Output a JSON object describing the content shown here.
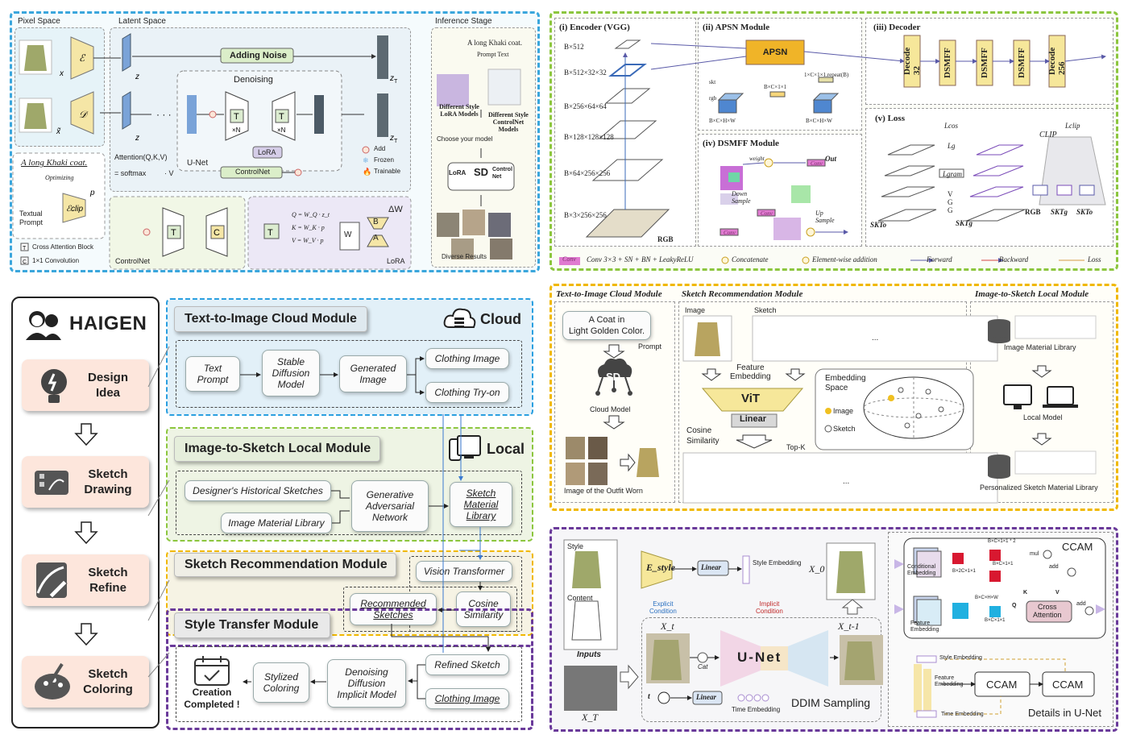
{
  "panelA": {
    "pixel": "Pixel Space",
    "latent": "Latent Space",
    "inference": "Inference Stage",
    "noise": "Adding Noise",
    "denoise": "Denoising",
    "unet": "U-Net",
    "attn": "Attention(Q,K,V)",
    "attn2": "= softmax",
    "attn3": "· V",
    "lora": "LoRA",
    "controlnet": "ControlNet",
    "caption": "A long Khaki coat.",
    "optimizing": "Optimizing",
    "textual": "Textual\nPrompt",
    "crossattn": "Cross Attention Block",
    "conv11": "1×1 Convolution",
    "add": "Add",
    "frozen": "Frozen",
    "trainable": "Trainable",
    "prompt_ex": "A long Khaki coat.",
    "prompt_text": "Prompt Text",
    "style_lora": "Different Style\nLoRA Models",
    "style_cn": "Different Style\nControlNet\nModels",
    "choose": "Choose your model",
    "lora_b": "LoRA",
    "sd_b": "SD",
    "cn_b": "Control\nNet",
    "diverse": "Diverse Results",
    "cn_title": "ControlNet",
    "lora_title": "LoRA",
    "eqQ": "Q = W_Q · z_t",
    "eqK": "K = W_K · p",
    "eqV": "V = W_V · p",
    "dw": "ΔW",
    "B": "B",
    "A": "A",
    "W": "W"
  },
  "panelB": {
    "enc": "(i) Encoder (VGG)",
    "apsn": "(ii) APSN Module",
    "dec": "(iii) Decoder",
    "dsmff": "(iv) DSMFF Module",
    "loss": "(v) Loss",
    "apsn_b": "APSN",
    "decode32": "Decode\n32",
    "decode256": "Decode\n256",
    "dsmff_b": "DSMFF",
    "rgb": "RGB",
    "clip": "CLIP",
    "vgg": "V\nG\nG",
    "sizes": [
      "B×512",
      "B×512×32×32",
      "B×256×64×64",
      "B×128×128×128",
      "B×64×256×256",
      "B×3×256×256"
    ],
    "legend_conv": "Conv",
    "legend_conv_t": "Conv 3×3 + SN + BN + LeakyReLU",
    "legend_cat": "Concatenate",
    "legend_add": "Element-wise addition",
    "legend_fwd": "Forward",
    "legend_bwd": "Backward",
    "legend_loss": "Loss",
    "weight": "weight",
    "out": "Out",
    "down": "Down\nSample",
    "up": "Up\nSample",
    "skt": "skt",
    "rgb_s": "rgb",
    "bchw": "B×C×H×W",
    "bc11": "B×C×1×1",
    "repeat": "1×C×1×1.repeat(B)",
    "conv": "Conv",
    "skto": "SKTo",
    "sktg": "SKTg",
    "lgram": "Lgram",
    "lg": "Lg",
    "lcos": "Lcos",
    "lclip": "Lclip"
  },
  "haigen": {
    "title": "HAIGEN",
    "steps": [
      "Design\nIdea",
      "Sketch\nDrawing",
      "Sketch\nRefine",
      "Sketch\nColoring"
    ]
  },
  "modules": {
    "t2i": "Text-to-Image Cloud Module",
    "cloud": "Cloud",
    "i2s": "Image-to-Sketch Local Module",
    "local": "Local",
    "rec": "Sketch Recommendation Module",
    "style": "Style Transfer Module"
  },
  "boxes": {
    "text_prompt": "Text\nPrompt",
    "sd_model": "Stable\nDiffusion\nModel",
    "gen_image": "Generated\nImage",
    "clothing_image": "Clothing Image",
    "tryon": "Clothing Try-on",
    "hist": "Designer's Historical Sketches",
    "iml": "Image Material Library",
    "gan": "Generative\nAdversarial\nNetwork",
    "sml": "Sketch\nMaterial\nLibrary",
    "vit": "Vision Transformer",
    "rec": "Recommended\nSketches",
    "cos": "Cosine\nSimilarity",
    "refined": "Refined Sketch",
    "clothing2": "Clothing Image",
    "ddim": "Denoising\nDiffusion\nImplicit Model",
    "stylized": "Stylized\nColoring",
    "done": "Creation\nCompleted !"
  },
  "panelC": {
    "t2i": "Text-to-Image Cloud Module",
    "rec": "Sketch Recommendation Module",
    "i2s": "Image-to-Sketch Local Module",
    "prompt_box": "A Coat in\nLight Golden Color.",
    "prompt": "Prompt",
    "sd": "SD",
    "cloud_model": "Cloud Model",
    "outfit": "Image of the Outfit Worn",
    "image": "Image",
    "sketch": "Sketch",
    "feat": "Feature\nEmbedding",
    "vit": "ViT",
    "linear": "Linear",
    "cosine": "Cosine\nSimilarity",
    "topk": "Top-K",
    "emb_space": "Embedding\nSpace",
    "image_l": "Image",
    "sketch_l": "Sketch",
    "iml": "Image Material Library",
    "local_model": "Local Model",
    "psml": "Personalized Sketch Material Library",
    "dots": "..."
  },
  "panelD": {
    "style": "Style",
    "content": "Content",
    "inputs": "Inputs",
    "estyle": "E_style",
    "linear": "Linear",
    "style_emb": "Style Embedding",
    "explicit": "Explicit\nCondition",
    "implicit": "Implicit\nCondition",
    "x0": "X_0",
    "xt": "X_t",
    "xt1": "X_t-1",
    "xT": "X_T",
    "unet": "U-Net",
    "cat": "Cat",
    "t": "t",
    "time_emb": "Time Embedding",
    "ddim": "DDIM Sampling",
    "ccam": "CCAM",
    "cond_emb": "Conditional\nEmbedding",
    "feat_emb": "Feature\nEmbedding",
    "cross": "Cross\nAttention",
    "mul": "mul",
    "add": "add",
    "q": "Q",
    "k": "K",
    "v": "V",
    "details": "Details in U-Net",
    "style_emb2": "Style Embedding",
    "feat_emb2": "Feature\nEmbedding",
    "time_emb2": "Time Embedding",
    "d1": "B×C×1×1 * 2",
    "d2": "B×2C×1×1",
    "d3": "B×C×1×1",
    "d4": "B×C×H×W",
    "d5": "B×C×1×1"
  }
}
